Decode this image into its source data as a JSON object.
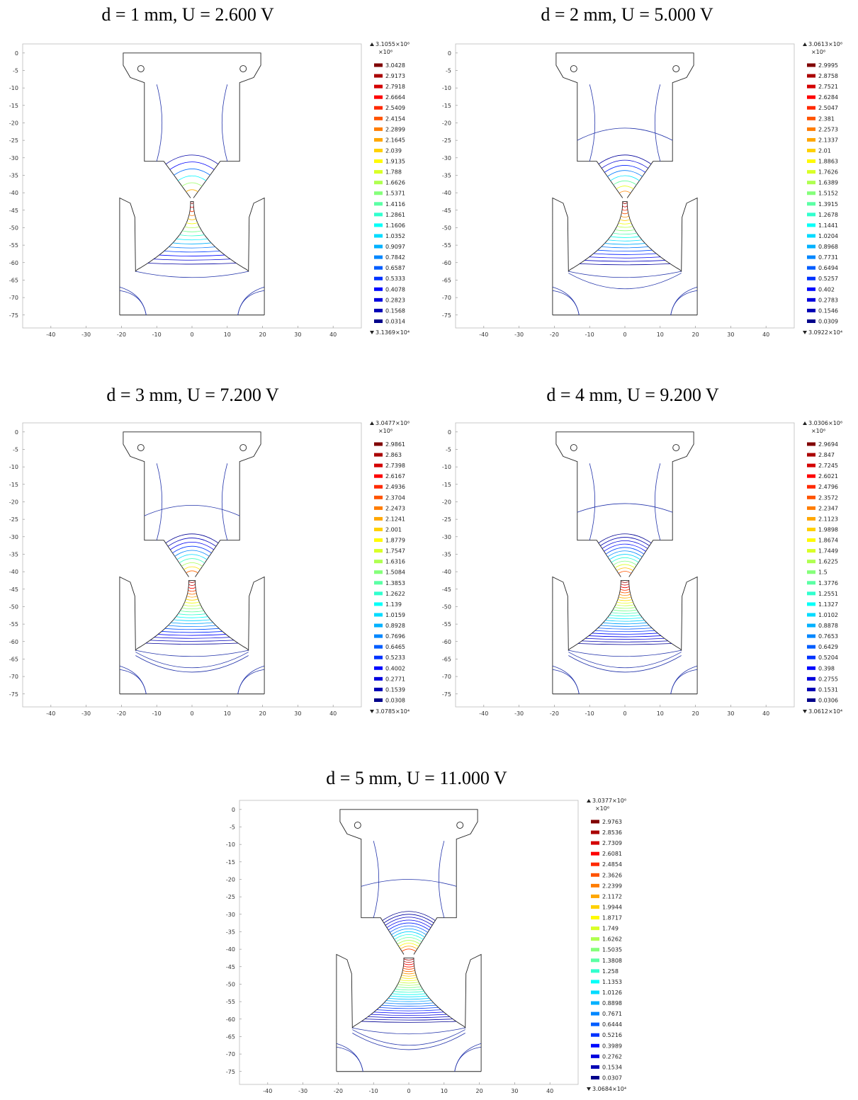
{
  "axes": {
    "xlim": [
      -48,
      48
    ],
    "ylim": [
      -78.7,
      2.6
    ],
    "xticks": [
      -40,
      -30,
      -20,
      -10,
      0,
      10,
      20,
      30,
      40
    ],
    "yticks": [
      0,
      -5,
      -10,
      -15,
      -20,
      -25,
      -30,
      -35,
      -40,
      -45,
      -50,
      -55,
      -60,
      -65,
      -70,
      -75
    ]
  },
  "panels": [
    {
      "title": "d = 1 mm, U = 2.600 V",
      "max": "3.1055×10⁶",
      "unit": "×10⁶",
      "min": "3.1369×10⁴",
      "levels": [
        3.0428,
        2.9173,
        2.7918,
        2.6664,
        2.5409,
        2.4154,
        2.2899,
        2.1645,
        2.039,
        1.9135,
        1.788,
        1.6626,
        1.5371,
        1.4116,
        1.2861,
        1.1606,
        1.0352,
        0.9097,
        0.7842,
        0.6587,
        0.5333,
        0.4078,
        0.2823,
        0.1568,
        0.0314
      ]
    },
    {
      "title": "d = 2 mm, U = 5.000 V",
      "max": "3.0613×10⁶",
      "unit": "×10⁶",
      "min": "3.0922×10⁴",
      "levels": [
        2.9995,
        2.8758,
        2.7521,
        2.6284,
        2.5047,
        2.381,
        2.2573,
        2.1337,
        2.01,
        1.8863,
        1.7626,
        1.6389,
        1.5152,
        1.3915,
        1.2678,
        1.1441,
        1.0204,
        0.8968,
        0.7731,
        0.6494,
        0.5257,
        0.402,
        0.2783,
        0.1546,
        0.0309
      ]
    },
    {
      "title": "d = 3 mm, U = 7.200 V",
      "max": "3.0477×10⁶",
      "unit": "×10⁶",
      "min": "3.0785×10⁴",
      "levels": [
        2.9861,
        2.863,
        2.7398,
        2.6167,
        2.4936,
        2.3704,
        2.2473,
        2.1241,
        2.001,
        1.8779,
        1.7547,
        1.6316,
        1.5084,
        1.3853,
        1.2622,
        1.139,
        1.0159,
        0.8928,
        0.7696,
        0.6465,
        0.5233,
        0.4002,
        0.2771,
        0.1539,
        0.0308
      ]
    },
    {
      "title": "d = 4 mm, U = 9.200 V",
      "max": "3.0306×10⁶",
      "unit": "×10⁶",
      "min": "3.0612×10⁴",
      "levels": [
        2.9694,
        2.847,
        2.7245,
        2.6021,
        2.4796,
        2.3572,
        2.2347,
        2.1123,
        1.9898,
        1.8674,
        1.7449,
        1.6225,
        1.5,
        1.3776,
        1.2551,
        1.1327,
        1.0102,
        0.8878,
        0.7653,
        0.6429,
        0.5204,
        0.398,
        0.2755,
        0.1531,
        0.0306
      ]
    },
    {
      "title": "d = 5 mm, U = 11.000 V",
      "max": "3.0377×10⁶",
      "unit": "×10⁶",
      "min": "3.0684×10⁴",
      "levels": [
        2.9763,
        2.8536,
        2.7309,
        2.6081,
        2.4854,
        2.3626,
        2.2399,
        2.1172,
        1.9944,
        1.8717,
        1.749,
        1.6262,
        1.5035,
        1.3808,
        1.258,
        1.1353,
        1.0126,
        0.8898,
        0.7671,
        0.6444,
        0.5216,
        0.3989,
        0.2762,
        0.1534,
        0.0307
      ]
    }
  ]
}
